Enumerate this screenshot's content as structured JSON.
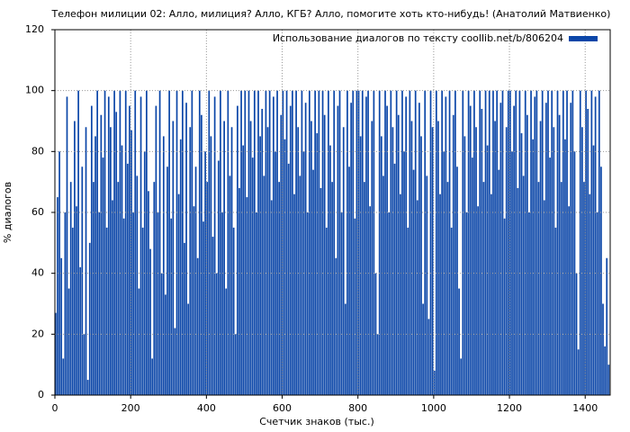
{
  "chart_data": {
    "type": "bar",
    "title": "Телефон милиции 02: Алло, милиция? Алло, КГБ? Алло, помогите хоть кто-нибудь! (Анатолий Матвиенко)",
    "x_label": "Счетчик знаков (тыс.)",
    "y_label": "% диалогов",
    "xlim": [
      0,
      1466
    ],
    "ylim": [
      0,
      120
    ],
    "xticks": [
      0,
      200,
      400,
      600,
      800,
      1000,
      1200,
      1400
    ],
    "yticks": [
      0,
      20,
      40,
      60,
      80,
      100,
      120
    ],
    "grid": true,
    "legend": "top-right",
    "x": [
      0,
      5,
      10,
      15,
      20,
      25,
      30,
      35,
      40,
      45,
      50,
      55,
      60,
      65,
      70,
      75,
      80,
      85,
      90,
      95,
      100,
      105,
      110,
      115,
      120,
      125,
      130,
      135,
      140,
      145,
      150,
      155,
      160,
      165,
      170,
      175,
      180,
      185,
      190,
      195,
      200,
      205,
      210,
      215,
      220,
      225,
      230,
      235,
      240,
      245,
      250,
      255,
      260,
      265,
      270,
      275,
      280,
      285,
      290,
      295,
      300,
      305,
      310,
      315,
      320,
      325,
      330,
      335,
      340,
      345,
      350,
      355,
      360,
      365,
      370,
      375,
      380,
      385,
      390,
      395,
      400,
      405,
      410,
      415,
      420,
      425,
      430,
      435,
      440,
      445,
      450,
      455,
      460,
      465,
      470,
      475,
      480,
      485,
      490,
      495,
      500,
      505,
      510,
      515,
      520,
      525,
      530,
      535,
      540,
      545,
      550,
      555,
      560,
      565,
      570,
      575,
      580,
      585,
      590,
      595,
      600,
      605,
      610,
      615,
      620,
      625,
      630,
      635,
      640,
      645,
      650,
      655,
      660,
      665,
      670,
      675,
      680,
      685,
      690,
      695,
      700,
      705,
      710,
      715,
      720,
      725,
      730,
      735,
      740,
      745,
      750,
      755,
      760,
      765,
      770,
      775,
      780,
      785,
      790,
      795,
      800,
      805,
      810,
      815,
      820,
      825,
      830,
      835,
      840,
      845,
      850,
      855,
      860,
      865,
      870,
      875,
      880,
      885,
      890,
      895,
      900,
      905,
      910,
      915,
      920,
      925,
      930,
      935,
      940,
      945,
      950,
      955,
      960,
      965,
      970,
      975,
      980,
      985,
      990,
      995,
      1000,
      1005,
      1010,
      1015,
      1020,
      1025,
      1030,
      1035,
      1040,
      1045,
      1050,
      1055,
      1060,
      1065,
      1070,
      1075,
      1080,
      1085,
      1090,
      1095,
      1100,
      1105,
      1110,
      1115,
      1120,
      1125,
      1130,
      1135,
      1140,
      1145,
      1150,
      1155,
      1160,
      1165,
      1170,
      1175,
      1180,
      1185,
      1190,
      1195,
      1200,
      1205,
      1210,
      1215,
      1220,
      1225,
      1230,
      1235,
      1240,
      1245,
      1250,
      1255,
      1260,
      1265,
      1270,
      1275,
      1280,
      1285,
      1290,
      1295,
      1300,
      1305,
      1310,
      1315,
      1320,
      1325,
      1330,
      1335,
      1340,
      1345,
      1350,
      1355,
      1360,
      1365,
      1370,
      1375,
      1380,
      1385,
      1390,
      1395,
      1400,
      1405,
      1410,
      1415,
      1420,
      1425,
      1430,
      1435,
      1440,
      1445,
      1450,
      1455,
      1460
    ],
    "series": [
      {
        "name": "Использование диалогов по тексту coollib.net/b/806204",
        "color": "#0b46a8",
        "values": [
          27,
          65,
          80,
          45,
          12,
          60,
          98,
          35,
          70,
          55,
          90,
          62,
          100,
          42,
          75,
          20,
          88,
          5,
          50,
          95,
          70,
          85,
          100,
          60,
          92,
          78,
          100,
          55,
          98,
          88,
          64,
          100,
          93,
          70,
          100,
          82,
          58,
          100,
          76,
          95,
          87,
          60,
          100,
          72,
          35,
          98,
          55,
          80,
          100,
          67,
          48,
          12,
          70,
          95,
          60,
          100,
          40,
          85,
          33,
          75,
          100,
          58,
          90,
          22,
          100,
          66,
          84,
          100,
          50,
          96,
          30,
          88,
          100,
          62,
          75,
          45,
          100,
          92,
          57,
          80,
          70,
          100,
          85,
          52,
          98,
          40,
          77,
          100,
          60,
          90,
          35,
          100,
          72,
          88,
          55,
          20,
          95,
          68,
          100,
          82,
          100,
          65,
          100,
          90,
          78,
          100,
          60,
          100,
          85,
          94,
          72,
          100,
          88,
          100,
          64,
          98,
          80,
          100,
          70,
          92,
          100,
          84,
          100,
          76,
          95,
          100,
          66,
          100,
          88,
          72,
          100,
          80,
          96,
          60,
          100,
          90,
          74,
          100,
          86,
          100,
          68,
          100,
          92,
          55,
          100,
          82,
          70,
          100,
          45,
          95,
          100,
          60,
          88,
          30,
          100,
          75,
          96,
          100,
          58,
          100,
          100,
          85,
          100,
          70,
          98,
          100,
          62,
          90,
          100,
          40,
          20,
          100,
          85,
          72,
          100,
          95,
          60,
          100,
          88,
          76,
          100,
          92,
          66,
          100,
          80,
          98,
          55,
          100,
          90,
          74,
          100,
          64,
          96,
          85,
          30,
          100,
          72,
          25,
          100,
          88,
          8,
          100,
          90,
          66,
          100,
          80,
          98,
          70,
          100,
          55,
          92,
          100,
          75,
          35,
          12,
          100,
          85,
          60,
          100,
          95,
          78,
          100,
          88,
          62,
          100,
          94,
          70,
          100,
          82,
          100,
          66,
          100,
          90,
          100,
          74,
          96,
          100,
          58,
          88,
          100,
          100,
          80,
          95,
          100,
          68,
          100,
          86,
          72,
          100,
          92,
          60,
          100,
          84,
          98,
          100,
          70,
          90,
          100,
          64,
          96,
          100,
          78,
          100,
          88,
          55,
          100,
          92,
          70,
          100,
          84,
          100,
          62,
          96,
          100,
          80,
          40,
          15,
          100,
          88,
          70,
          100,
          94,
          66,
          100,
          82,
          98,
          60,
          100,
          75,
          30,
          16,
          45,
          10
        ]
      }
    ]
  }
}
